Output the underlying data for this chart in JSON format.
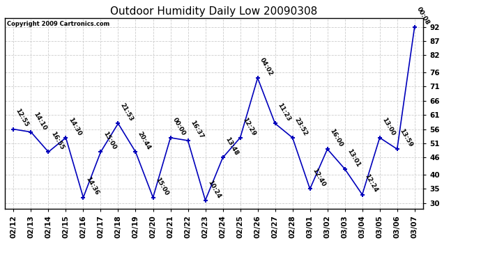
{
  "title": "Outdoor Humidity Daily Low 20090308",
  "copyright": "Copyright 2009 Cartronics.com",
  "dates": [
    "02/12",
    "02/13",
    "02/14",
    "02/15",
    "02/16",
    "02/17",
    "02/18",
    "02/19",
    "02/20",
    "02/21",
    "02/22",
    "02/23",
    "02/24",
    "02/25",
    "02/26",
    "02/27",
    "02/28",
    "03/01",
    "03/02",
    "03/03",
    "03/04",
    "03/05",
    "03/06",
    "03/07"
  ],
  "values": [
    56,
    55,
    48,
    53,
    32,
    48,
    58,
    48,
    32,
    53,
    52,
    31,
    46,
    53,
    74,
    58,
    53,
    35,
    49,
    42,
    33,
    53,
    49,
    92
  ],
  "times": [
    "12:55",
    "14:10",
    "16:55",
    "14:30",
    "14:36",
    "15:00",
    "21:53",
    "20:44",
    "15:00",
    "00:00",
    "16:37",
    "10:24",
    "13:48",
    "12:29",
    "04:02",
    "11:23",
    "23:52",
    "12:40",
    "16:00",
    "13:01",
    "12:24",
    "13:00",
    "13:59",
    "00:08"
  ],
  "line_color": "#0000bb",
  "marker_color": "#0000bb",
  "bg_color": "#ffffff",
  "grid_color": "#cccccc",
  "ylim": [
    28,
    95
  ],
  "yticks": [
    30,
    35,
    40,
    46,
    51,
    56,
    61,
    66,
    71,
    76,
    82,
    87,
    92
  ],
  "title_fontsize": 11,
  "copyright_fontsize": 6,
  "label_fontsize": 6.5,
  "tick_fontsize": 7.5
}
